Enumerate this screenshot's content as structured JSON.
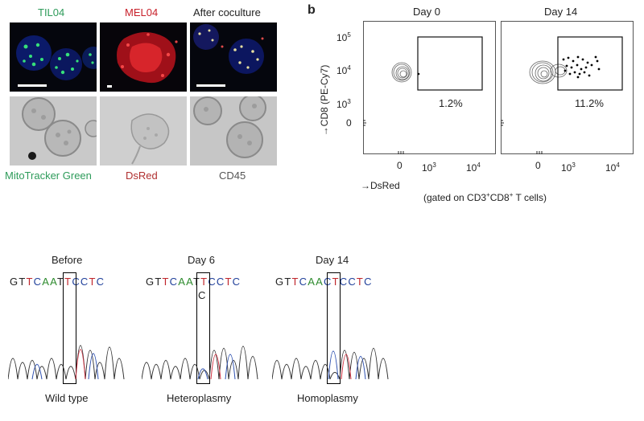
{
  "panel_a": {
    "top_labels": {
      "til": "TIL04",
      "mel": "MEL04",
      "after": "After coculture"
    },
    "bottom_labels": {
      "mito": "MitoTracker Green",
      "dsred": "DsRed",
      "cd45": "CD45"
    },
    "colors": {
      "mito_label": "#2e9b5a",
      "dsred_label": "#b03030",
      "cd45_label": "#555555",
      "til_title": "#2e9b5a",
      "mel_title": "#c8202a"
    }
  },
  "panel_b": {
    "letter": "b",
    "ylabel": "→CD8 (PE-Cy7)",
    "xlabel": "→DsRed",
    "gating_note_prefix": "(gated on CD3",
    "gating_note_sup1": "+",
    "gating_note_mid": "CD8",
    "gating_note_sup2": "+",
    "gating_note_suffix": " T cells)",
    "plots": [
      {
        "title": "Day 0",
        "gate_percent": "1.2%"
      },
      {
        "title": "Day 14",
        "gate_percent": "11.2%"
      }
    ],
    "y_ticks": [
      {
        "base": "10",
        "exp": "5"
      },
      {
        "base": "10",
        "exp": "4"
      },
      {
        "base": "10",
        "exp": "3"
      },
      {
        "base": "0",
        "exp": ""
      }
    ],
    "x_ticks": [
      {
        "base": "0",
        "exp": ""
      },
      {
        "base": "10",
        "exp": "3"
      },
      {
        "base": "10",
        "exp": "4"
      }
    ]
  },
  "panel_c": {
    "chromatograms": [
      {
        "title": "Before",
        "sequence": "GTTCAATTCCTC",
        "extra_call": "",
        "caption": "Wild type"
      },
      {
        "title": "Day 6",
        "sequence": "GTTCAATTCCTC",
        "extra_call": "C",
        "caption": "Heteroplasmy"
      },
      {
        "title": "Day 14",
        "sequence": "GTTCAACTCCTC",
        "extra_call": "",
        "caption": "Homoplasmy"
      }
    ]
  }
}
